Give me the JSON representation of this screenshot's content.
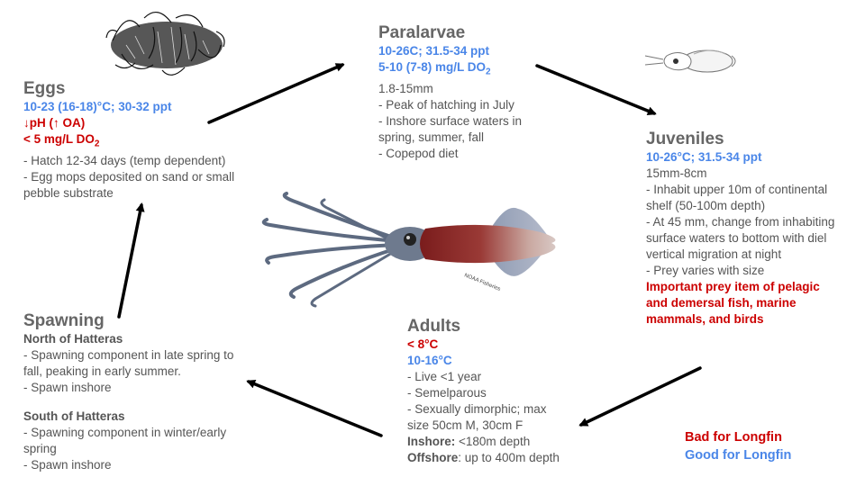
{
  "eggs": {
    "title": "Eggs",
    "temp": "10-23 (16-18)°C; 30-32 ppt",
    "ph": "↓pH (↑ OA)",
    "do_main": "< 5 mg/L DO",
    "do_sub": "2",
    "items": [
      "- Hatch 12-34 days (temp dependent)",
      "- Egg mops deposited on sand or small pebble substrate"
    ]
  },
  "paralarvae": {
    "title": "Paralarvae",
    "temp": "10-26C; 31.5-34 ppt",
    "do_main": "5-10 (7-8) mg/L DO",
    "do_sub": "2",
    "size": "1.8-15mm",
    "items": [
      "- Peak of hatching in July",
      "- Inshore surface waters in spring, summer, fall",
      "- Copepod diet"
    ]
  },
  "juveniles": {
    "title": "Juveniles",
    "temp": "10-26°C; 31.5-34 ppt",
    "size": "15mm-8cm",
    "items": [
      "- Inhabit upper 10m of continental shelf (50-100m depth)",
      "- At 45 mm, change from inhabiting surface waters to bottom with diel vertical migration at night",
      "- Prey varies with size"
    ],
    "important": "Important prey item of pelagic and demersal fish, marine mammals, and birds"
  },
  "adults": {
    "title": "Adults",
    "red_temp": "< 8°C",
    "blue_temp": "10-16°C",
    "items": [
      "- Live <1 year",
      "- Semelparous",
      "- Sexually dimorphic; max size 50cm M, 30cm F"
    ],
    "inshore_label": "Inshore:",
    "inshore_value": " <180m depth",
    "offshore_label": "Offshore",
    "offshore_value": ": up to 400m depth"
  },
  "spawning": {
    "title": "Spawning",
    "north_heading": "North of Hatteras",
    "north_items": [
      "- Spawning component in late spring to fall, peaking in early summer.",
      "- Spawn inshore"
    ],
    "south_heading": "South of Hatteras",
    "south_items": [
      "- Spawning component in winter/early spring",
      "- Spawn inshore"
    ]
  },
  "legend": {
    "bad": "Bad for Longfin",
    "good": "Good for Longfin",
    "bad_color": "#cc0000",
    "good_color": "#4a86e8"
  },
  "squid_watermark": "NOAA Fisheries"
}
